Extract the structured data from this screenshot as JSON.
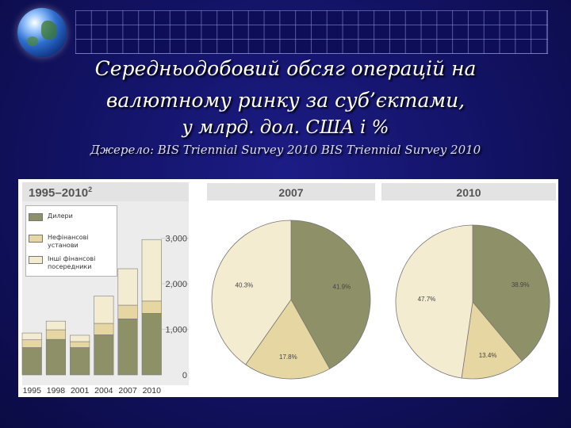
{
  "slide": {
    "title_line1": "Середньодобовий обсяг операцій на",
    "title_line2": "валютному ринку за суб’єктами,",
    "units_line": "у млрд. дол. США і %",
    "source_line": "Джерело: BIS Triennial Survey 2010 BIS Triennial Survey 2010"
  },
  "colors": {
    "dealers": "#8e9168",
    "nonfinancial": "#e6d7a2",
    "other_financial": "#f4ecd0",
    "background": "#141466"
  },
  "icons": {
    "logo": "globe-icon"
  },
  "chart_data": [
    {
      "type": "bar",
      "stacked": true,
      "title": "1995–2010²",
      "categories": [
        "1995",
        "1998",
        "2001",
        "2004",
        "2007",
        "2010"
      ],
      "series": [
        {
          "name": "Дилери",
          "values": [
            600,
            780,
            600,
            880,
            1230,
            1350
          ]
        },
        {
          "name": "Нефінансові установи",
          "values": [
            170,
            210,
            130,
            250,
            300,
            270
          ]
        },
        {
          "name": "Інші фінансові посередники",
          "values": [
            150,
            190,
            140,
            600,
            800,
            1350
          ]
        }
      ],
      "ylim": [
        0,
        4000
      ],
      "yticks": [
        "0",
        "1,000",
        "2,000",
        "3,000"
      ],
      "legend": "top-left"
    },
    {
      "type": "pie",
      "title": "2007",
      "slices": [
        {
          "name": "Дилери",
          "value": 41.9,
          "label": "41.9%"
        },
        {
          "name": "Нефінансові установи",
          "value": 17.8,
          "label": "17.8%"
        },
        {
          "name": "Інші фінансові посередники",
          "value": 40.3,
          "label": "40.3%"
        }
      ]
    },
    {
      "type": "pie",
      "title": "2010",
      "slices": [
        {
          "name": "Дилери",
          "value": 38.9,
          "label": "38.9%"
        },
        {
          "name": "Нефінансові установи",
          "value": 13.4,
          "label": "13.4%"
        },
        {
          "name": "Інші фінансові посередники",
          "value": 47.7,
          "label": "47.7%"
        }
      ]
    }
  ]
}
